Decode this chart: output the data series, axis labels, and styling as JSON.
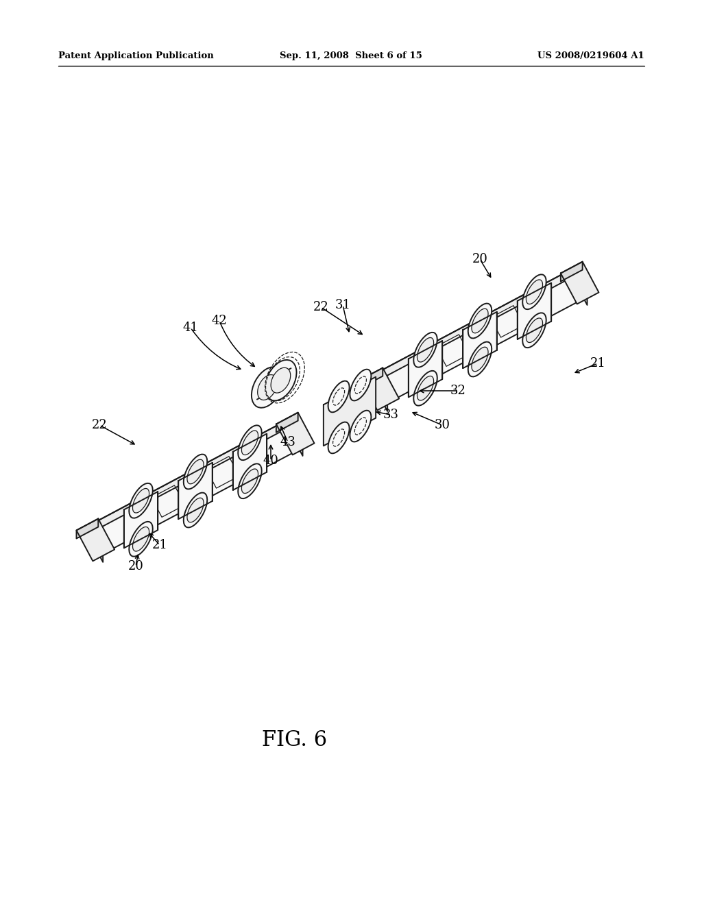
{
  "bg_color": "#ffffff",
  "header_left": "Patent Application Publication",
  "header_center": "Sep. 11, 2008  Sheet 6 of 15",
  "header_right": "US 2008/0219604 A1",
  "fig_label": "FIG. 6",
  "line_color": "#1a1a1a",
  "lw": 1.4,
  "lw_thin": 0.9,
  "lw_thick": 2.0,
  "face_light": "#f8f8f8",
  "face_mid": "#eeeeee",
  "face_dark": "#dddddd",
  "face_darker": "#cccccc"
}
